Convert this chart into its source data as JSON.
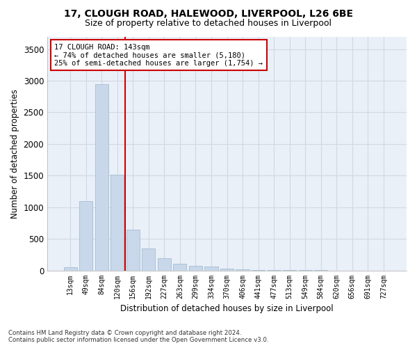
{
  "title1": "17, CLOUGH ROAD, HALEWOOD, LIVERPOOL, L26 6BE",
  "title2": "Size of property relative to detached houses in Liverpool",
  "xlabel": "Distribution of detached houses by size in Liverpool",
  "ylabel": "Number of detached properties",
  "footnote1": "Contains HM Land Registry data © Crown copyright and database right 2024.",
  "footnote2": "Contains public sector information licensed under the Open Government Licence v3.0.",
  "bar_labels": [
    "13sqm",
    "49sqm",
    "84sqm",
    "120sqm",
    "156sqm",
    "192sqm",
    "227sqm",
    "263sqm",
    "299sqm",
    "334sqm",
    "370sqm",
    "406sqm",
    "441sqm",
    "477sqm",
    "513sqm",
    "549sqm",
    "584sqm",
    "620sqm",
    "656sqm",
    "691sqm",
    "727sqm"
  ],
  "bar_values": [
    55,
    1100,
    2950,
    1520,
    650,
    345,
    190,
    100,
    75,
    60,
    30,
    15,
    10,
    5,
    2,
    1,
    1,
    0,
    0,
    0,
    0
  ],
  "bar_color": "#c8d8ea",
  "bar_edge_color": "#9ab4cc",
  "grid_color": "#d0d8e4",
  "vline_color": "#cc0000",
  "annotation_text": "17 CLOUGH ROAD: 143sqm\n← 74% of detached houses are smaller (5,180)\n25% of semi-detached houses are larger (1,754) →",
  "annotation_box_color": "#ffffff",
  "annotation_box_edge": "#cc0000",
  "ylim": [
    0,
    3700
  ],
  "yticks": [
    0,
    500,
    1000,
    1500,
    2000,
    2500,
    3000,
    3500
  ],
  "fig_bg_color": "#ffffff",
  "plot_bg_color": "#eaf0f8"
}
